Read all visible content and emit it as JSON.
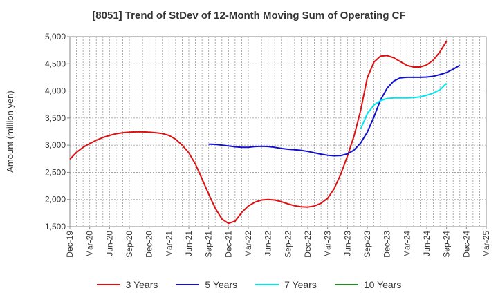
{
  "chart_data": {
    "type": "line",
    "title": "[8051]  Trend of StDev of 12-Month Moving Sum of Operating CF",
    "xlabel": "",
    "ylabel": "Amount (million yen)",
    "ylim": [
      1500,
      5000
    ],
    "yticks": [
      1500,
      2000,
      2500,
      3000,
      3500,
      4000,
      4500,
      5000
    ],
    "ytick_labels": [
      "1,500",
      "2,000",
      "2,500",
      "3,000",
      "3,500",
      "4,000",
      "4,500",
      "5,000"
    ],
    "x_start": "2019-12",
    "x_end": "2025-03",
    "xtick_labels": [
      "Dec-19",
      "Mar-20",
      "Jun-20",
      "Sep-20",
      "Dec-20",
      "Mar-21",
      "Jun-21",
      "Sep-21",
      "Dec-21",
      "Mar-22",
      "Jun-22",
      "Sep-22",
      "Dec-22",
      "Mar-23",
      "Jun-23",
      "Sep-23",
      "Dec-23",
      "Mar-24",
      "Jun-24",
      "Sep-24",
      "Dec-24",
      "Mar-25"
    ],
    "grid": true,
    "legend_position": "bottom",
    "series": [
      {
        "name": "3 Years",
        "color": "#dd1111",
        "start": "2019-12",
        "values": [
          2740,
          2870,
          2960,
          3030,
          3090,
          3140,
          3180,
          3210,
          3230,
          3240,
          3245,
          3245,
          3240,
          3230,
          3215,
          3180,
          3110,
          3000,
          2860,
          2650,
          2380,
          2100,
          1840,
          1640,
          1560,
          1600,
          1760,
          1880,
          1950,
          1990,
          2000,
          1990,
          1960,
          1920,
          1885,
          1865,
          1860,
          1880,
          1930,
          2020,
          2200,
          2470,
          2800,
          3170,
          3640,
          4240,
          4530,
          4640,
          4650,
          4610,
          4540,
          4470,
          4440,
          4440,
          4480,
          4570,
          4720,
          4920
        ]
      },
      {
        "name": "5 Years",
        "color": "#1111cc",
        "start": "2021-09",
        "values": [
          3020,
          3015,
          3000,
          2985,
          2970,
          2960,
          2960,
          2975,
          2980,
          2975,
          2960,
          2940,
          2925,
          2915,
          2905,
          2885,
          2860,
          2835,
          2815,
          2805,
          2810,
          2840,
          2910,
          3040,
          3240,
          3520,
          3830,
          4050,
          4180,
          4240,
          4250,
          4250,
          4250,
          4255,
          4270,
          4300,
          4340,
          4400,
          4470
        ]
      },
      {
        "name": "7 Years",
        "color": "#00e5ee",
        "start": "2023-08",
        "values": [
          3300,
          3580,
          3740,
          3820,
          3860,
          3870,
          3870,
          3870,
          3875,
          3890,
          3920,
          3960,
          4020,
          4140
        ]
      },
      {
        "name": "10 Years",
        "color": "#228b22",
        "start": "2023-08",
        "values": []
      }
    ]
  }
}
